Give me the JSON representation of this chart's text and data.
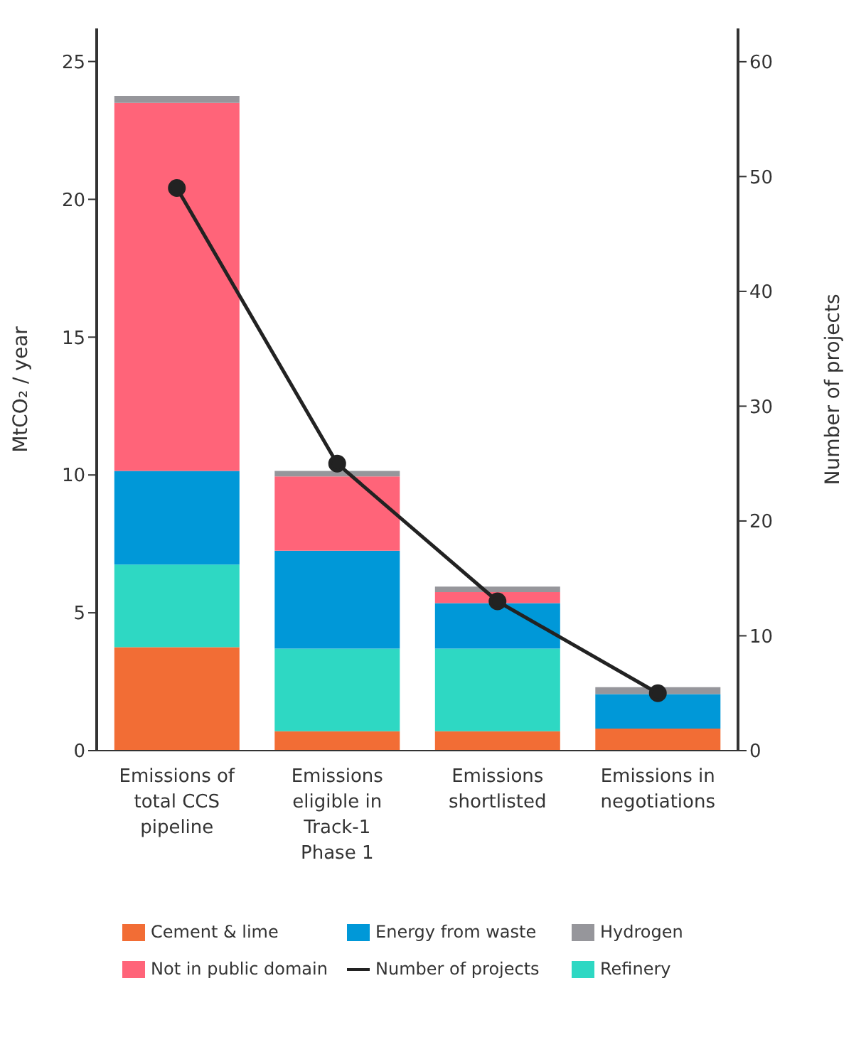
{
  "chart_data": {
    "type": "bar",
    "stacked": true,
    "categories": [
      "Emissions of total CCS pipeline",
      "Emissions eligible in Track-1 Phase 1",
      "Emissions shortlisted",
      "Emissions in negotiations"
    ],
    "ylabel": "MtCO₂ / year",
    "y2label": "Number of projects",
    "ylim": [
      0,
      26.2
    ],
    "yticks": [
      0,
      5,
      10,
      15,
      20,
      25
    ],
    "y2lim": [
      0,
      62.9
    ],
    "y2ticks": [
      0,
      10,
      20,
      30,
      40,
      50,
      60
    ],
    "grid": false,
    "legend": "bottom",
    "series": [
      {
        "name": "Cement & lime",
        "color": "#f26d35",
        "values": [
          3.75,
          0.7,
          0.7,
          0.8
        ]
      },
      {
        "name": "Refinery",
        "color": "#2ed8c3",
        "values": [
          3.0,
          3.0,
          3.0,
          0
        ]
      },
      {
        "name": "Energy from waste",
        "color": "#0098d8",
        "values": [
          3.4,
          3.55,
          1.65,
          1.25
        ]
      },
      {
        "name": "Not in public domain",
        "color": "#ff6479",
        "values": [
          13.35,
          2.7,
          0.4,
          0
        ]
      },
      {
        "name": "Hydrogen",
        "color": "#96969b",
        "values": [
          0.25,
          0.2,
          0.2,
          0.25
        ]
      },
      {
        "name": "Number of projects",
        "type": "line",
        "axis": "y2",
        "marker": "circle",
        "color": "#222222",
        "values": [
          49,
          25,
          13,
          5
        ]
      }
    ]
  }
}
